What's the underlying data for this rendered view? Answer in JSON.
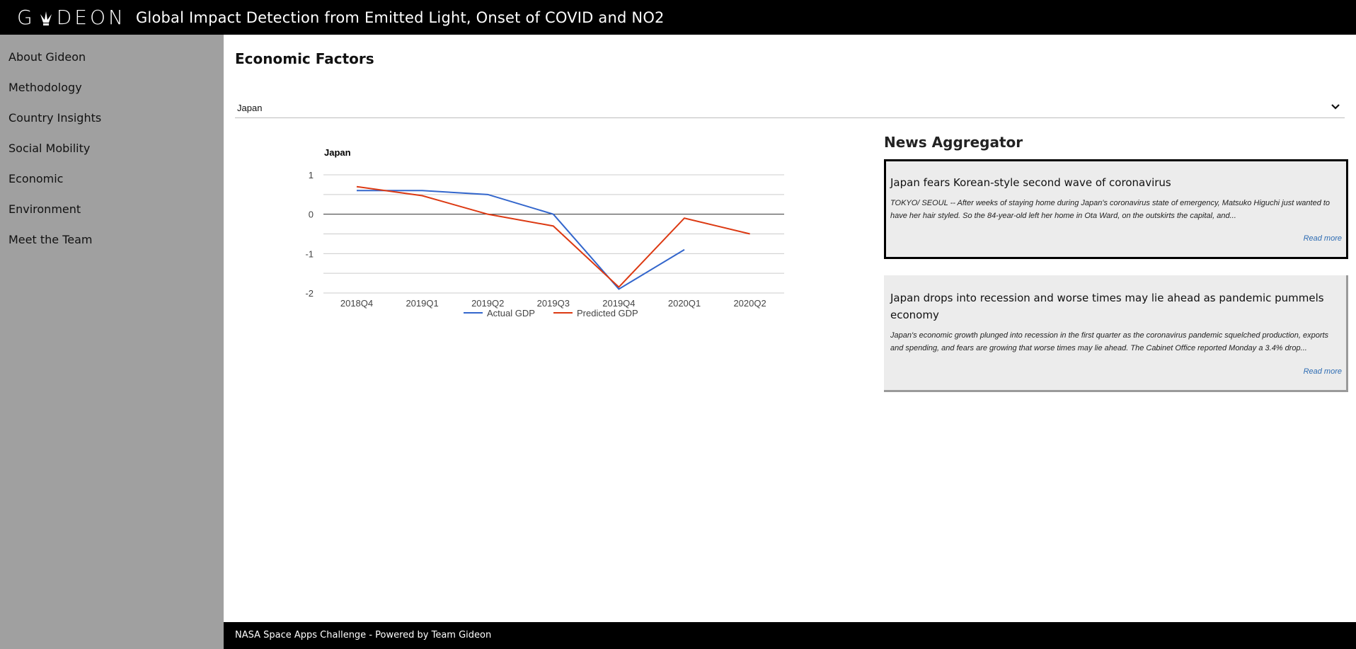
{
  "header": {
    "logo_text_left": "G",
    "logo_text_right": "DEON",
    "title": "Global Impact Detection from Emitted Light, Onset of COVID and NO2"
  },
  "sidebar": {
    "items": [
      {
        "label": "About Gideon"
      },
      {
        "label": "Methodology"
      },
      {
        "label": "Country Insights"
      },
      {
        "label": "Social Mobility"
      },
      {
        "label": "Economic"
      },
      {
        "label": "Environment"
      },
      {
        "label": "Meet the Team"
      }
    ]
  },
  "main": {
    "title": "Economic Factors",
    "country_select": {
      "value": "Japan"
    }
  },
  "chart_data": {
    "type": "line",
    "title": "Japan",
    "categories": [
      "2018Q4",
      "2019Q1",
      "2019Q2",
      "2019Q3",
      "2019Q4",
      "2020Q1",
      "2020Q2"
    ],
    "series": [
      {
        "name": "Actual GDP",
        "color": "#3366cc",
        "values": [
          0.6,
          0.6,
          0.5,
          0.0,
          -1.9,
          -0.9,
          null
        ]
      },
      {
        "name": "Predicted GDP",
        "color": "#dc3912",
        "values": [
          0.7,
          0.47,
          0.0,
          -0.3,
          -1.85,
          -0.1,
          -0.5
        ]
      }
    ],
    "yticks": [
      1,
      0,
      -1,
      -2
    ],
    "ylim": [
      -2,
      1
    ],
    "gridlines": true,
    "legend": "bottom"
  },
  "news": {
    "heading": "News Aggregator",
    "articles": [
      {
        "title": "Japan fears Korean-style second wave of coronavirus",
        "excerpt": "TOKYO/ SEOUL -- After weeks of staying home during Japan's coronavirus state of emergency, Matsuko Higuchi just wanted to have her hair styled. So the 84-year-old left her home in Ota Ward, on the outskirts the capital, and...",
        "link": "Read more"
      },
      {
        "title": "Japan drops into recession and worse times may lie ahead as pandemic pummels economy",
        "excerpt": "Japan's economic growth plunged into recession in the first quarter as the coronavirus pandemic squelched production, exports and spending, and fears are growing that worse times may lie ahead. The Cabinet Office reported Monday a 3.4% drop...",
        "link": "Read more"
      }
    ]
  },
  "footer": {
    "text": "NASA Space Apps Challenge - Powered by Team Gideon"
  }
}
